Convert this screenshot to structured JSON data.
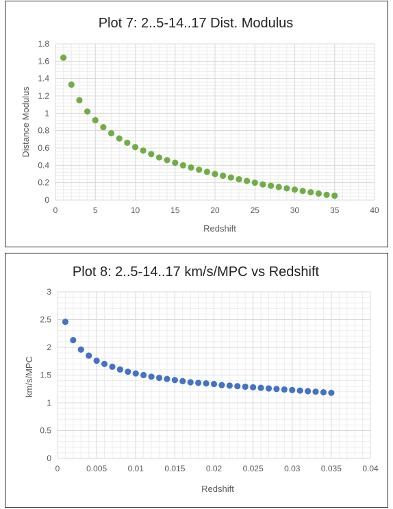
{
  "chart_data": [
    {
      "type": "scatter",
      "title": "Plot 7: 2..5-14..17 Dist. Modulus",
      "xlabel": "Redshift",
      "ylabel": "Distance Modulus",
      "xlim": [
        0,
        40
      ],
      "ylim": [
        0,
        1.8
      ],
      "xticks": [
        "0",
        "5",
        "10",
        "15",
        "20",
        "25",
        "30",
        "35",
        "40"
      ],
      "yticks": [
        "0",
        "0.2",
        "0.4",
        "0.6",
        "0.8",
        "1",
        "1.2",
        "1.4",
        "1.6",
        "1.8"
      ],
      "grid": true,
      "marker_color": "#70ad47",
      "x": [
        1,
        2,
        3,
        4,
        5,
        6,
        7,
        8,
        9,
        10,
        11,
        12,
        13,
        14,
        15,
        16,
        17,
        18,
        19,
        20,
        21,
        22,
        23,
        24,
        25,
        26,
        27,
        28,
        29,
        30,
        31,
        32,
        33,
        34,
        35
      ],
      "y": [
        1.64,
        1.33,
        1.15,
        1.02,
        0.92,
        0.84,
        0.77,
        0.71,
        0.66,
        0.61,
        0.57,
        0.53,
        0.49,
        0.46,
        0.43,
        0.4,
        0.375,
        0.35,
        0.325,
        0.3,
        0.28,
        0.26,
        0.24,
        0.22,
        0.2,
        0.18,
        0.165,
        0.15,
        0.135,
        0.12,
        0.105,
        0.09,
        0.075,
        0.06,
        0.05
      ]
    },
    {
      "type": "scatter",
      "title": "Plot 8: 2..5-14..17 km/s/MPC vs Redshift",
      "xlabel": "Redshift",
      "ylabel": "km/s/MPC",
      "xlim": [
        0,
        0.04
      ],
      "ylim": [
        0,
        3
      ],
      "xticks": [
        "0",
        "0.005",
        "0.01",
        "0.015",
        "0.02",
        "0.025",
        "0.03",
        "0.035",
        "0.04"
      ],
      "yticks": [
        "0",
        "0.5",
        "1",
        "1.5",
        "2",
        "2.5",
        "3"
      ],
      "grid": true,
      "marker_color": "#4472c4",
      "x": [
        0.001,
        0.002,
        0.003,
        0.004,
        0.005,
        0.006,
        0.007,
        0.008,
        0.009,
        0.01,
        0.011,
        0.012,
        0.013,
        0.014,
        0.015,
        0.016,
        0.017,
        0.018,
        0.019,
        0.02,
        0.021,
        0.022,
        0.023,
        0.024,
        0.025,
        0.026,
        0.027,
        0.028,
        0.029,
        0.03,
        0.031,
        0.032,
        0.033,
        0.034,
        0.035
      ],
      "y": [
        2.46,
        2.13,
        1.96,
        1.85,
        1.76,
        1.7,
        1.65,
        1.6,
        1.56,
        1.53,
        1.5,
        1.47,
        1.45,
        1.43,
        1.41,
        1.39,
        1.37,
        1.36,
        1.35,
        1.34,
        1.32,
        1.31,
        1.3,
        1.29,
        1.28,
        1.27,
        1.26,
        1.25,
        1.24,
        1.23,
        1.22,
        1.21,
        1.2,
        1.19,
        1.18
      ]
    }
  ]
}
